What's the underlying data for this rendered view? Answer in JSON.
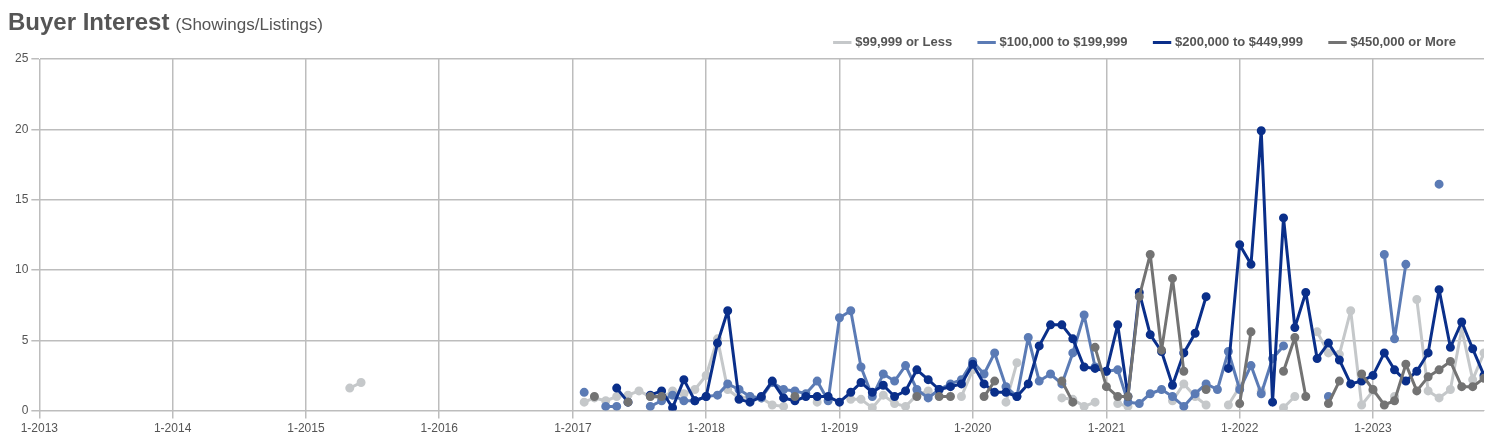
{
  "chart_data": {
    "type": "line",
    "title": "Buyer Interest",
    "subtitle": "(Showings/Listings)",
    "x": [
      "2015-05",
      "2015-06",
      "2015-07",
      "2015-08",
      "2015-09",
      "2015-10",
      "2015-11",
      "2015-12",
      "2016-01",
      "2016-02",
      "2016-03",
      "2016-04",
      "2016-05",
      "2016-06",
      "2016-07",
      "2016-08",
      "2016-09",
      "2016-10",
      "2016-11",
      "2016-12",
      "2017-01",
      "2017-02",
      "2017-03",
      "2017-04",
      "2017-05",
      "2017-06",
      "2017-07",
      "2017-08",
      "2017-09",
      "2017-10",
      "2017-11",
      "2017-12",
      "2018-01",
      "2018-02",
      "2018-03",
      "2018-04",
      "2018-05",
      "2018-06",
      "2018-07",
      "2018-08",
      "2018-09",
      "2018-10",
      "2018-11",
      "2018-12",
      "2019-01",
      "2019-02",
      "2019-03",
      "2019-04",
      "2019-05",
      "2019-06",
      "2019-07",
      "2019-08",
      "2019-09",
      "2019-10",
      "2019-11",
      "2019-12",
      "2020-01",
      "2020-02",
      "2020-03",
      "2020-04",
      "2020-05",
      "2020-06",
      "2020-07",
      "2020-08",
      "2020-09",
      "2020-10",
      "2020-11",
      "2020-12",
      "2021-01",
      "2021-02",
      "2021-03",
      "2021-04",
      "2021-05",
      "2021-06",
      "2021-07",
      "2021-08",
      "2021-09",
      "2021-10",
      "2021-11",
      "2021-12",
      "2022-01",
      "2022-02",
      "2022-03",
      "2022-04",
      "2022-05",
      "2022-06",
      "2022-07",
      "2022-08",
      "2022-09",
      "2022-10",
      "2022-11",
      "2022-12",
      "2023-01",
      "2023-02",
      "2023-03",
      "2023-04",
      "2023-05",
      "2023-06",
      "2023-07",
      "2023-08",
      "2023-09",
      "2023-10",
      "2023-11"
    ],
    "series": [
      {
        "name": "$99,999 or Less",
        "color": "#c5c8ca",
        "values": [
          1.6,
          2.0,
          null,
          null,
          null,
          null,
          null,
          null,
          null,
          null,
          null,
          null,
          null,
          null,
          null,
          null,
          null,
          null,
          null,
          null,
          null,
          0.6,
          0.9,
          0.7,
          1.0,
          1.1,
          1.4,
          1.0,
          0.9,
          1.4,
          1.2,
          1.5,
          2.5,
          5.1,
          1.5,
          0.9,
          1.0,
          0.9,
          0.4,
          0.3,
          null,
          null,
          0.6,
          null,
          null,
          0.8,
          0.8,
          0.2,
          1.1,
          0.5,
          0.3,
          1.1,
          1.4,
          null,
          null,
          1.0,
          2.9,
          null,
          null,
          0.6,
          3.4,
          null,
          null,
          null,
          0.9,
          0.8,
          0.3,
          0.6,
          null,
          0.5,
          0.3,
          null,
          null,
          null,
          0.7,
          1.9,
          1.0,
          0.4,
          null,
          0.4,
          1.7,
          null,
          1.4,
          null,
          0.2,
          1.0,
          null,
          5.6,
          4.1,
          4.0,
          7.1,
          0.4,
          1.4,
          null,
          1.0,
          null,
          7.9,
          1.4,
          0.9,
          1.5,
          5.8,
          2.2,
          4.1
        ]
      },
      {
        "name": "$100,000 to $199,999",
        "color": "#5b7bb5",
        "values": [
          null,
          null,
          null,
          null,
          null,
          null,
          null,
          null,
          null,
          null,
          null,
          null,
          null,
          null,
          null,
          null,
          null,
          null,
          null,
          null,
          null,
          1.3,
          null,
          0.3,
          0.3,
          null,
          null,
          0.3,
          0.7,
          1.1,
          0.7,
          0.7,
          1.0,
          1.1,
          1.9,
          1.5,
          1.0,
          0.9,
          2.0,
          1.5,
          1.4,
          1.2,
          2.1,
          0.7,
          6.6,
          7.1,
          3.1,
          1.0,
          2.6,
          2.1,
          3.2,
          1.5,
          0.9,
          1.5,
          1.9,
          2.2,
          3.5,
          2.6,
          4.1,
          1.7,
          1.0,
          5.2,
          2.1,
          2.6,
          1.9,
          4.1,
          6.8,
          3.1,
          2.8,
          2.9,
          0.6,
          0.5,
          1.2,
          1.5,
          1.0,
          0.3,
          1.2,
          1.9,
          1.5,
          4.2,
          1.5,
          3.2,
          1.2,
          3.7,
          4.6,
          null,
          null,
          null,
          1.0,
          null,
          null,
          null,
          null,
          11.1,
          5.1,
          10.4,
          null,
          null,
          16.1,
          null,
          null,
          null,
          null
        ]
      },
      {
        "name": "$200,000 to $449,999",
        "color": "#0a2f8a",
        "values": [
          null,
          null,
          null,
          null,
          null,
          null,
          null,
          null,
          null,
          null,
          null,
          null,
          null,
          null,
          null,
          null,
          null,
          null,
          null,
          null,
          null,
          null,
          null,
          null,
          1.6,
          0.6,
          null,
          1.1,
          1.4,
          0.2,
          2.2,
          0.7,
          1.0,
          4.8,
          7.1,
          0.8,
          0.6,
          1.0,
          2.1,
          0.9,
          0.7,
          1.0,
          1.0,
          1.0,
          0.6,
          1.3,
          2.0,
          1.3,
          1.8,
          1.0,
          1.4,
          2.9,
          2.2,
          1.5,
          1.7,
          1.9,
          3.3,
          1.9,
          1.3,
          1.3,
          1.0,
          1.9,
          4.6,
          6.1,
          6.1,
          5.1,
          3.1,
          3.0,
          2.8,
          6.1,
          1.0,
          8.4,
          5.4,
          4.2,
          1.8,
          4.1,
          5.5,
          8.1,
          null,
          3.0,
          11.8,
          10.4,
          19.9,
          0.6,
          13.7,
          5.9,
          8.4,
          3.7,
          4.8,
          3.6,
          1.9,
          2.1,
          2.5,
          4.1,
          2.9,
          2.1,
          2.8,
          4.1,
          8.6,
          4.5,
          6.3,
          4.4,
          2.5
        ]
      },
      {
        "name": "$450,000 or More",
        "color": "#737373",
        "values": [
          null,
          null,
          null,
          null,
          null,
          null,
          null,
          null,
          null,
          null,
          null,
          null,
          null,
          null,
          null,
          null,
          null,
          null,
          null,
          null,
          null,
          null,
          1.0,
          null,
          null,
          0.6,
          null,
          1.0,
          1.0,
          null,
          null,
          null,
          null,
          null,
          null,
          null,
          null,
          null,
          null,
          null,
          1.0,
          null,
          null,
          null,
          null,
          null,
          null,
          null,
          null,
          null,
          null,
          1.0,
          null,
          1.0,
          1.0,
          null,
          null,
          1.0,
          2.1,
          null,
          null,
          null,
          null,
          null,
          2.1,
          0.6,
          null,
          4.5,
          1.7,
          1.0,
          1.0,
          8.1,
          11.1,
          4.3,
          9.4,
          2.8,
          null,
          1.5,
          null,
          null,
          0.5,
          5.6,
          null,
          null,
          2.8,
          5.2,
          1.0,
          null,
          0.5,
          2.1,
          null,
          2.6,
          1.5,
          0.4,
          0.7,
          3.3,
          1.4,
          2.4,
          2.9,
          3.5,
          1.7,
          1.7,
          2.3
        ]
      }
    ],
    "xlim": [
      "2013-01",
      "2023-11"
    ],
    "xticks": [
      {
        "value": "2013-01",
        "label": "1-2013"
      },
      {
        "value": "2014-01",
        "label": "1-2014"
      },
      {
        "value": "2015-01",
        "label": "1-2015"
      },
      {
        "value": "2016-01",
        "label": "1-2016"
      },
      {
        "value": "2017-01",
        "label": "1-2017"
      },
      {
        "value": "2018-01",
        "label": "1-2018"
      },
      {
        "value": "2019-01",
        "label": "1-2019"
      },
      {
        "value": "2020-01",
        "label": "1-2020"
      },
      {
        "value": "2021-01",
        "label": "1-2021"
      },
      {
        "value": "2022-01",
        "label": "1-2022"
      },
      {
        "value": "2023-01",
        "label": "1-2023"
      }
    ],
    "ylim": [
      0,
      25
    ],
    "yticks": [
      0,
      5,
      10,
      15,
      20,
      25
    ],
    "grid": true,
    "legend": "top right",
    "marker": "circle",
    "line_style": "solid"
  }
}
